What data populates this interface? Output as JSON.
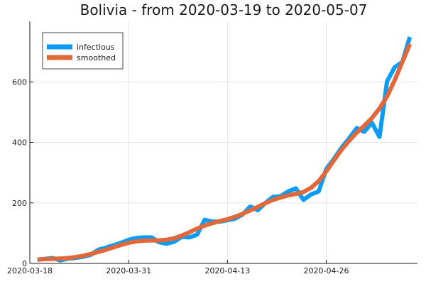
{
  "chart_data": {
    "type": "line",
    "title": "Bolivia - from 2020-03-19 to 2020-05-07",
    "xlabel": "",
    "ylabel": "",
    "xlim": [
      "2020-03-18",
      "2020-05-08"
    ],
    "ylim": [
      0,
      800
    ],
    "x_ticks": [
      "2020-03-18",
      "2020-03-31",
      "2020-04-13",
      "2020-04-26"
    ],
    "y_ticks": [
      0,
      200,
      400,
      600
    ],
    "grid": true,
    "legend_position": "top-left",
    "x": [
      "2020-03-19",
      "2020-03-20",
      "2020-03-21",
      "2020-03-22",
      "2020-03-23",
      "2020-03-24",
      "2020-03-25",
      "2020-03-26",
      "2020-03-27",
      "2020-03-28",
      "2020-03-29",
      "2020-03-30",
      "2020-03-31",
      "2020-04-01",
      "2020-04-02",
      "2020-04-03",
      "2020-04-04",
      "2020-04-05",
      "2020-04-06",
      "2020-04-07",
      "2020-04-08",
      "2020-04-09",
      "2020-04-10",
      "2020-04-11",
      "2020-04-12",
      "2020-04-13",
      "2020-04-14",
      "2020-04-15",
      "2020-04-16",
      "2020-04-17",
      "2020-04-18",
      "2020-04-19",
      "2020-04-20",
      "2020-04-21",
      "2020-04-22",
      "2020-04-23",
      "2020-04-24",
      "2020-04-25",
      "2020-04-26",
      "2020-04-27",
      "2020-04-28",
      "2020-04-29",
      "2020-04-30",
      "2020-05-01",
      "2020-05-02",
      "2020-05-03",
      "2020-05-04",
      "2020-05-05",
      "2020-05-06",
      "2020-05-07"
    ],
    "series": [
      {
        "name": "infectious",
        "color": "#0c9cf5",
        "values": [
          12,
          15,
          18,
          10,
          16,
          18,
          22,
          28,
          45,
          52,
          60,
          68,
          78,
          84,
          86,
          86,
          70,
          65,
          72,
          88,
          86,
          95,
          144,
          138,
          138,
          143,
          148,
          162,
          188,
          176,
          200,
          220,
          222,
          238,
          248,
          210,
          228,
          238,
          312,
          345,
          382,
          413,
          447,
          435,
          465,
          418,
          602,
          648,
          665,
          748
        ]
      },
      {
        "name": "smoothed",
        "color": "#e0683a",
        "values": [
          13,
          14,
          15,
          16,
          18,
          21,
          25,
          31,
          38,
          45,
          53,
          61,
          68,
          73,
          75,
          76,
          76,
          78,
          83,
          92,
          103,
          115,
          125,
          133,
          140,
          146,
          154,
          164,
          175,
          187,
          199,
          210,
          218,
          225,
          230,
          236,
          250,
          272,
          304,
          340,
          375,
          405,
          432,
          455,
          480,
          512,
          552,
          605,
          665,
          725
        ]
      }
    ]
  }
}
